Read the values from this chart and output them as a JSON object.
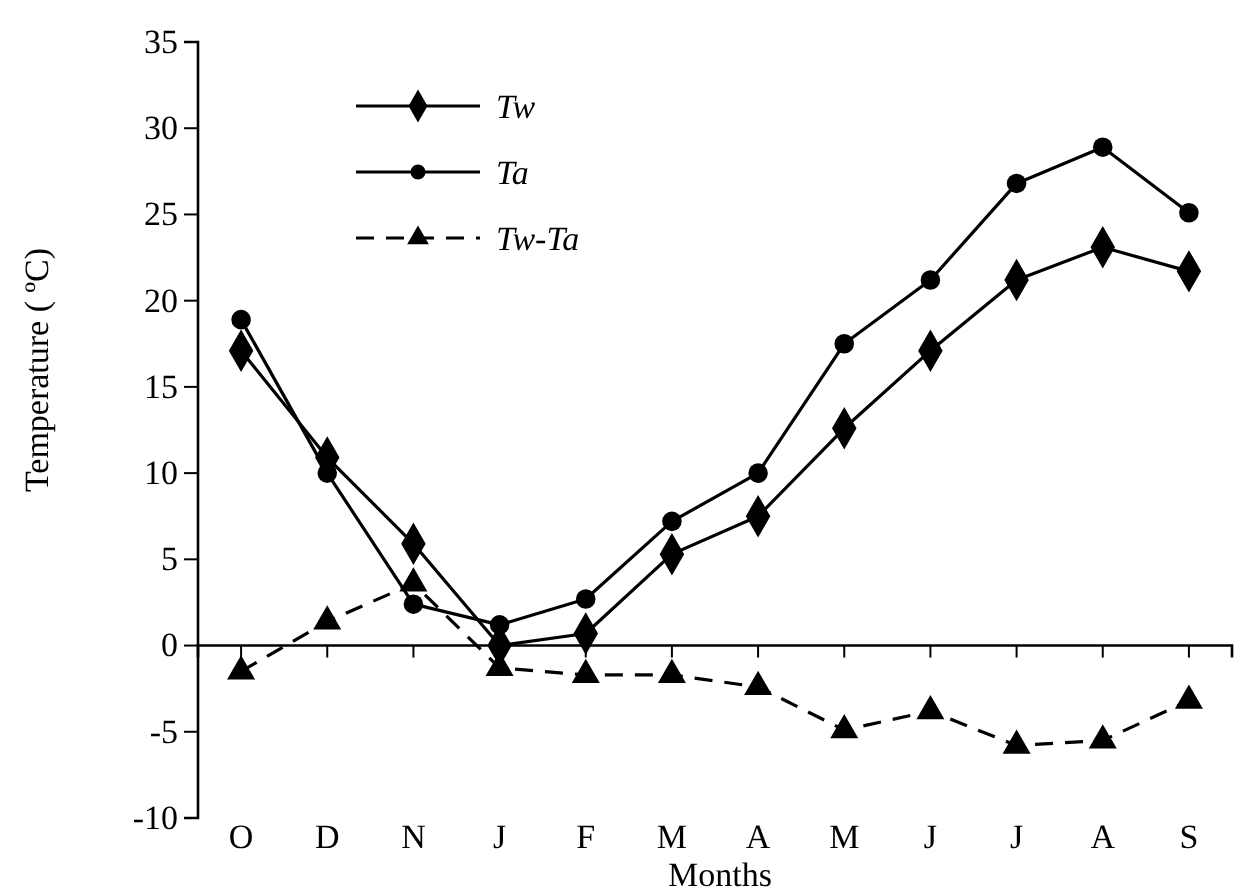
{
  "chart_data": {
    "type": "line",
    "xlabel": "Months",
    "ylabel": "Temperature ( ºC)",
    "categories": [
      "O",
      "D",
      "N",
      "J",
      "F",
      "M",
      "A",
      "M",
      "J",
      "J",
      "A",
      "S"
    ],
    "series": [
      {
        "name": "Tw",
        "color": "#000000",
        "marker": "diamond",
        "line_style": "solid",
        "values": [
          17.1,
          10.9,
          5.9,
          0.0,
          0.7,
          5.3,
          7.5,
          12.6,
          17.1,
          21.2,
          23.1,
          21.7
        ]
      },
      {
        "name": "Ta",
        "color": "#000000",
        "marker": "circle",
        "line_style": "solid",
        "values": [
          18.9,
          10.0,
          2.4,
          1.2,
          2.7,
          7.2,
          10.0,
          17.5,
          21.2,
          26.8,
          28.9,
          25.1
        ]
      },
      {
        "name": "Tw-Ta",
        "color": "#000000",
        "marker": "triangle",
        "line_style": "dashed",
        "values": [
          -1.5,
          1.4,
          3.6,
          -1.3,
          -1.7,
          -1.7,
          -2.4,
          -4.9,
          -3.8,
          -5.8,
          -5.5,
          -3.2
        ]
      }
    ],
    "ylim": [
      -10,
      35
    ],
    "yticks": [
      -10,
      -5,
      0,
      5,
      10,
      15,
      20,
      25,
      30,
      35
    ],
    "grid": false,
    "legend": "top left"
  }
}
